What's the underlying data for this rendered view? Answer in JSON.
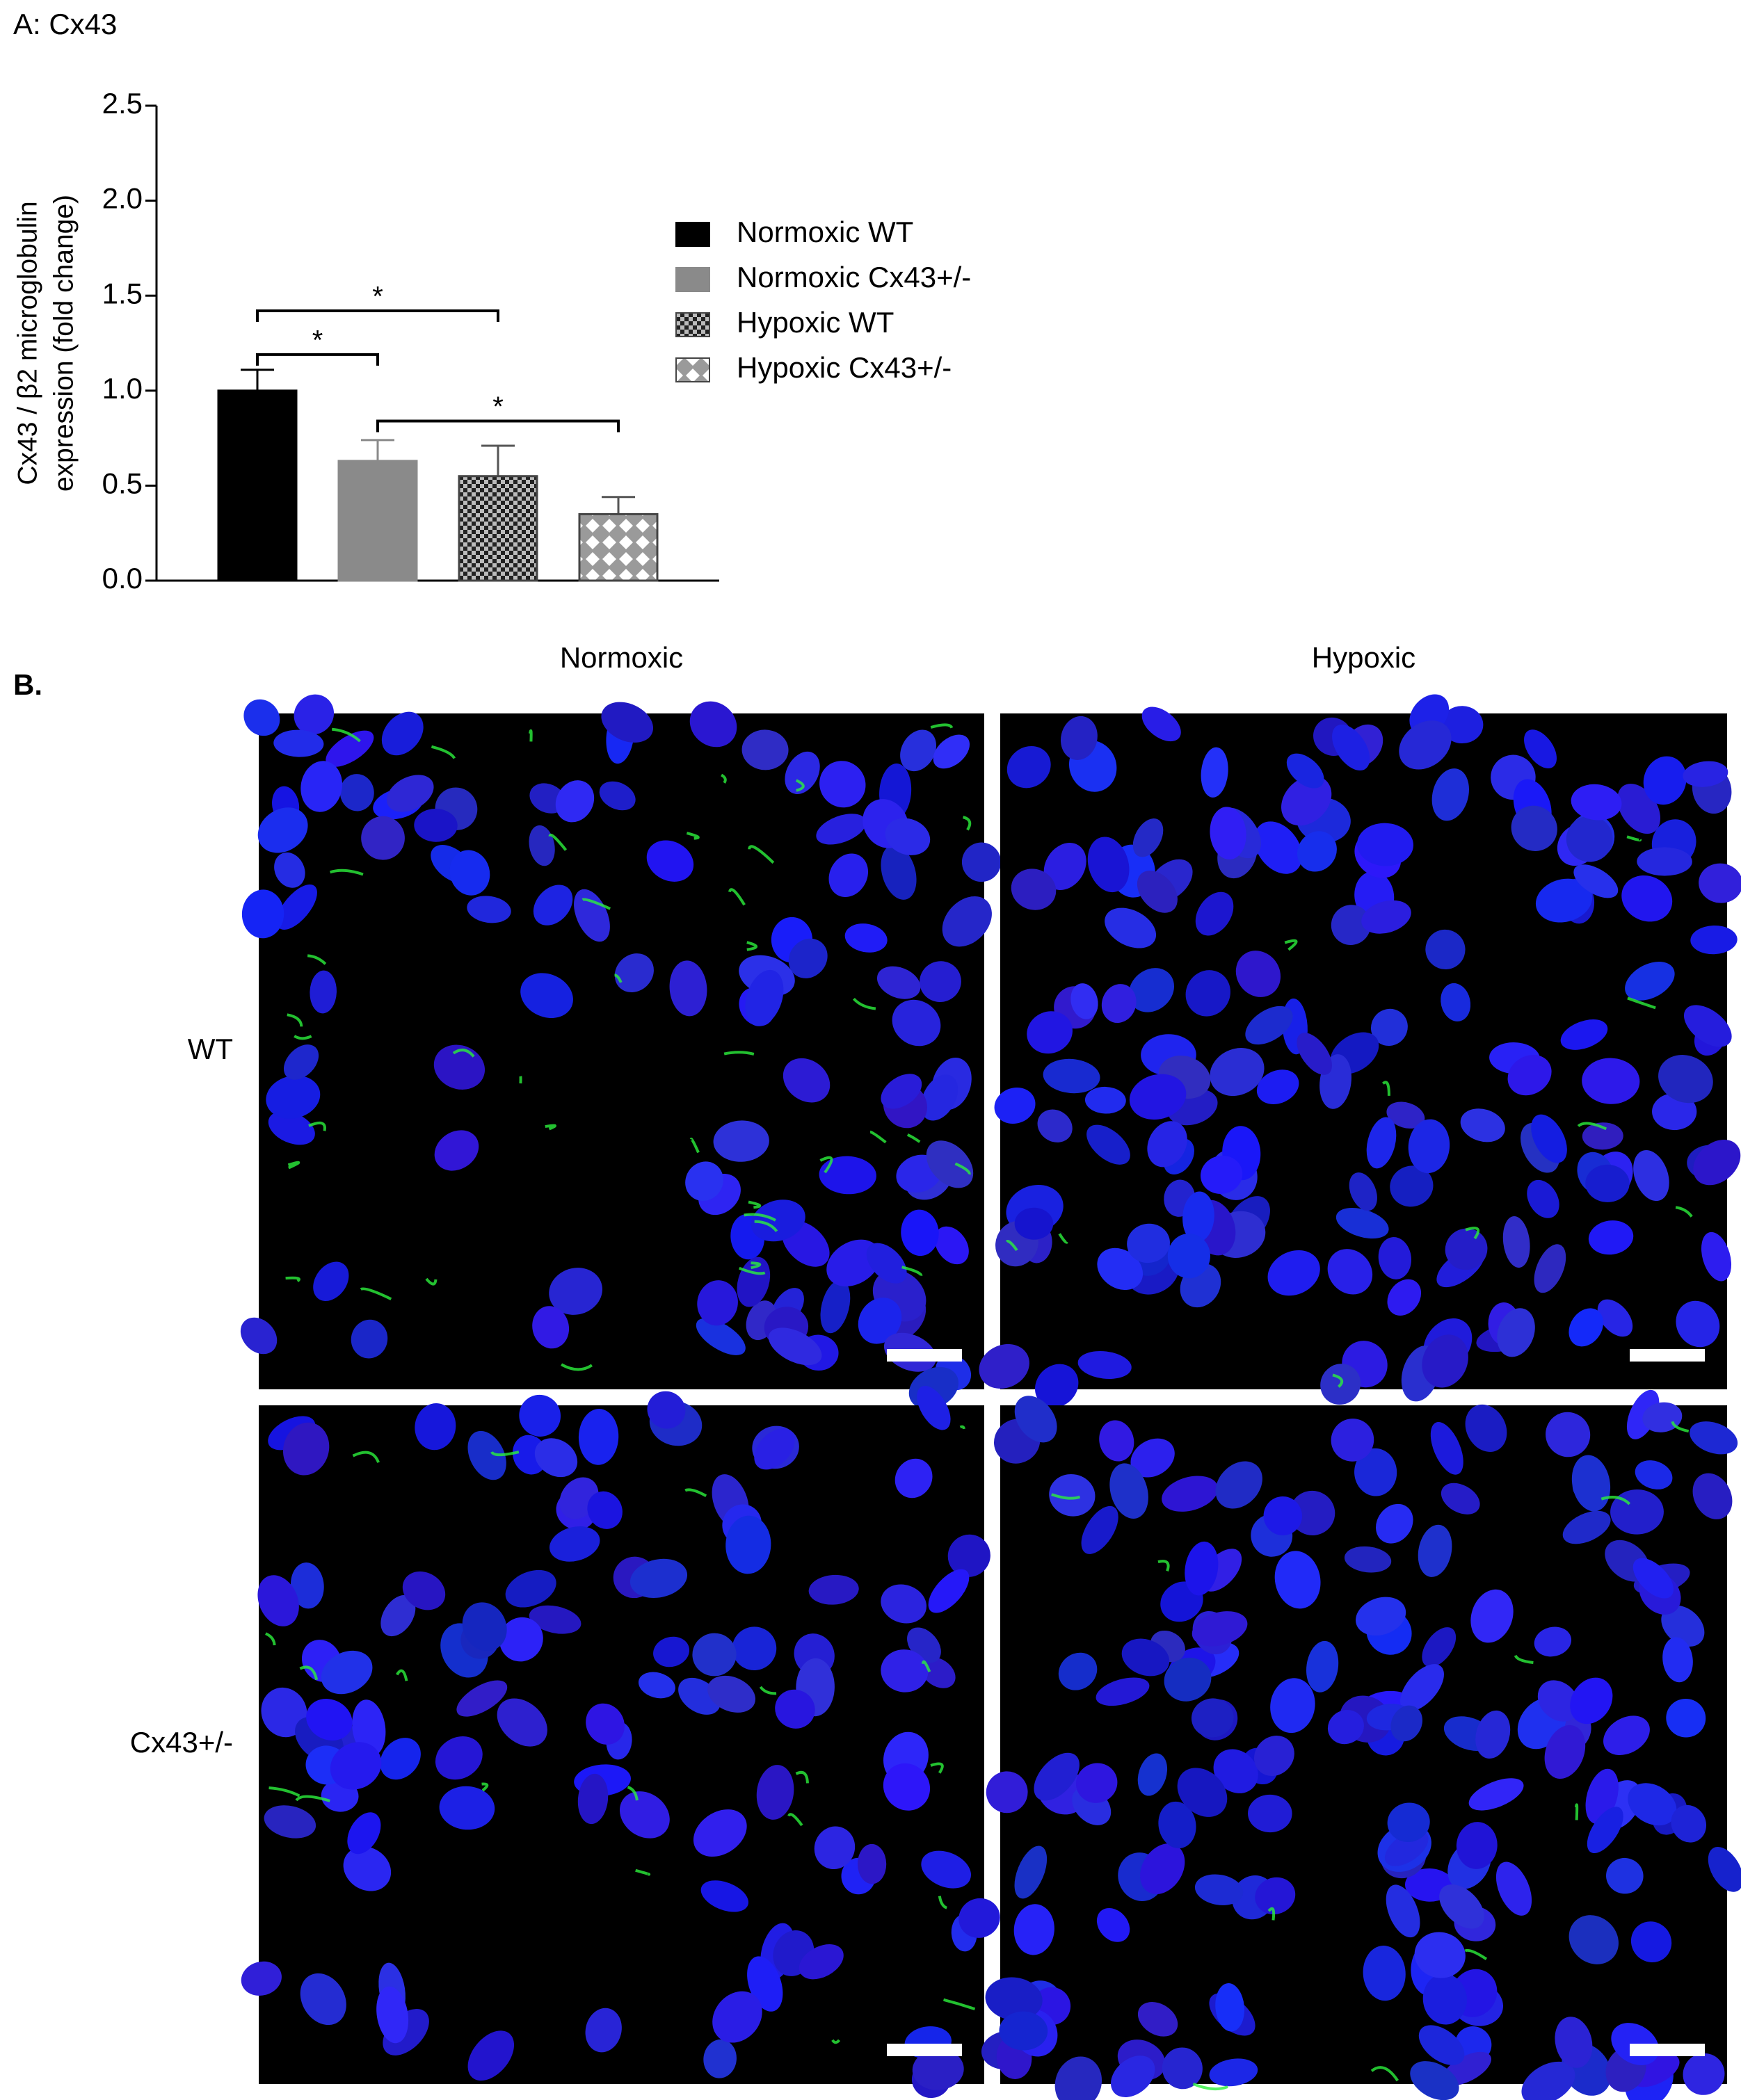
{
  "chart_data": {
    "type": "bar",
    "title": "A: Cx43",
    "ylabel": [
      "Cx43 / β2 microglobulin",
      "expression (fold change)"
    ],
    "ylim": [
      0,
      2.5
    ],
    "yticks": [
      {
        "value": 0,
        "label": "0.0"
      },
      {
        "value": 0.5,
        "label": "0.5"
      },
      {
        "value": 1,
        "label": "1.0"
      },
      {
        "value": 1.5,
        "label": "1.5"
      },
      {
        "value": 2,
        "label": "2.0"
      },
      {
        "value": 2.5,
        "label": "2.5"
      }
    ],
    "series": [
      {
        "name": "Normoxic WT",
        "color": "#000000",
        "pattern": "solid",
        "values": [
          1.0
        ],
        "errors": [
          0.11
        ]
      },
      {
        "name": "Normoxic Cx43+/-",
        "color": "#8a8a8a",
        "pattern": "solid",
        "values": [
          0.63
        ],
        "errors": [
          0.11
        ]
      },
      {
        "name": "Hypoxic WT",
        "color": "#3a3a3a",
        "pattern": "check",
        "values": [
          0.55
        ],
        "errors": [
          0.16
        ]
      },
      {
        "name": "Hypoxic Cx43+/-",
        "color": "#bdbdbd",
        "pattern": "diamond",
        "values": [
          0.35
        ],
        "errors": [
          0.09
        ]
      }
    ],
    "legend": "right",
    "brackets": [
      {
        "text": "*",
        "between": [
          "Normoxic WT",
          "Hypoxic WT"
        ],
        "y": 1.42
      },
      {
        "text": "*",
        "between": [
          "Normoxic WT",
          "Normoxic Cx43+/-"
        ],
        "y": 1.19
      },
      {
        "text": "*",
        "between": [
          "Normoxic Cx43+/-",
          "Hypoxic Cx43+/-"
        ],
        "y": 0.84
      }
    ]
  },
  "panel_b": {
    "label": "B.",
    "columns": [
      "Normoxic",
      "Hypoxic"
    ],
    "rows": [
      "WT",
      "Cx43+/-"
    ]
  }
}
